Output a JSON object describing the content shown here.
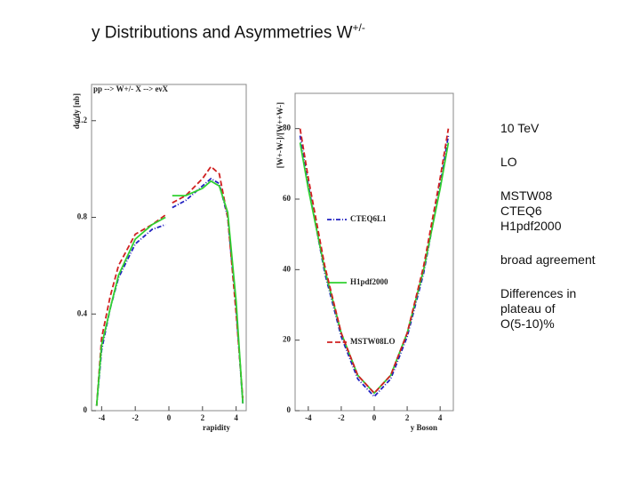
{
  "title": "y Distributions and Asymmetries W",
  "title_sup": "+/-",
  "notes": [
    [
      "10 TeV"
    ],
    [
      "LO"
    ],
    [
      "MSTW08",
      "CTEQ6",
      "H1pdf2000"
    ],
    [
      "broad agreement"
    ],
    [
      "Differences in",
      "plateau of",
      "O(5-10)%"
    ]
  ],
  "chart_data": [
    {
      "type": "line",
      "title": "pp --> W+/- X --> eνX",
      "x_label": "rapidity",
      "y_label": "dσ/dy [nb]",
      "x": [
        -4.3,
        -4,
        -3.5,
        -3,
        -2,
        -1,
        -0.2,
        0,
        0.2,
        1,
        2,
        2.5,
        3,
        3.5,
        4,
        4.4
      ],
      "xlim": [
        -4.6,
        4.6
      ],
      "xticks": [
        -4,
        -2,
        0,
        2,
        4
      ],
      "ylim": [
        0,
        1.35
      ],
      "yticks": [
        0,
        0.4,
        0.8,
        1.2
      ],
      "series": [
        {
          "color": "#2020c0",
          "dash": "dashdot",
          "values": [
            0.02,
            0.25,
            0.42,
            0.55,
            0.69,
            0.75,
            0.77,
            null,
            0.84,
            0.87,
            0.93,
            0.96,
            0.94,
            0.8,
            0.42,
            0.03
          ]
        },
        {
          "color": "#d02020",
          "dash": "dashed",
          "values": [
            0.02,
            0.3,
            0.47,
            0.6,
            0.73,
            0.77,
            0.81,
            null,
            0.86,
            0.89,
            0.96,
            1.01,
            0.98,
            0.8,
            0.4,
            0.05
          ]
        },
        {
          "color": "#30d030",
          "dash": "solid",
          "values": [
            0.02,
            0.27,
            0.42,
            0.56,
            0.71,
            0.77,
            0.8,
            null,
            0.89,
            0.89,
            0.92,
            0.95,
            0.93,
            0.82,
            0.45,
            0.03
          ]
        }
      ]
    },
    {
      "type": "line",
      "x_label": "y Boson",
      "y_label": "[W+-W-]/[W++W-]",
      "x": [
        -4.5,
        -4,
        -3,
        -2,
        -1,
        0,
        1,
        2,
        3,
        4,
        4.5
      ],
      "xlim": [
        -4.8,
        4.8
      ],
      "xticks": [
        -4,
        -2,
        0,
        2,
        4
      ],
      "ylim": [
        0,
        90
      ],
      "yticks": [
        0,
        20,
        40,
        60,
        80
      ],
      "series": [
        {
          "name": "CTEQ6L1",
          "color": "#2020c0",
          "dash": "dashdot",
          "values": [
            78,
            64,
            39,
            21,
            9,
            4,
            9,
            21,
            39,
            64,
            78
          ]
        },
        {
          "name": "H1pdf2000",
          "color": "#30d030",
          "dash": "solid",
          "values": [
            76,
            63,
            40,
            22,
            10,
            5,
            10,
            22,
            40,
            63,
            76
          ]
        },
        {
          "name": "MSTW08LO",
          "color": "#d02020",
          "dash": "dashed",
          "values": [
            80,
            66,
            41,
            22,
            10,
            5,
            10,
            22,
            41,
            66,
            80
          ]
        }
      ]
    }
  ]
}
